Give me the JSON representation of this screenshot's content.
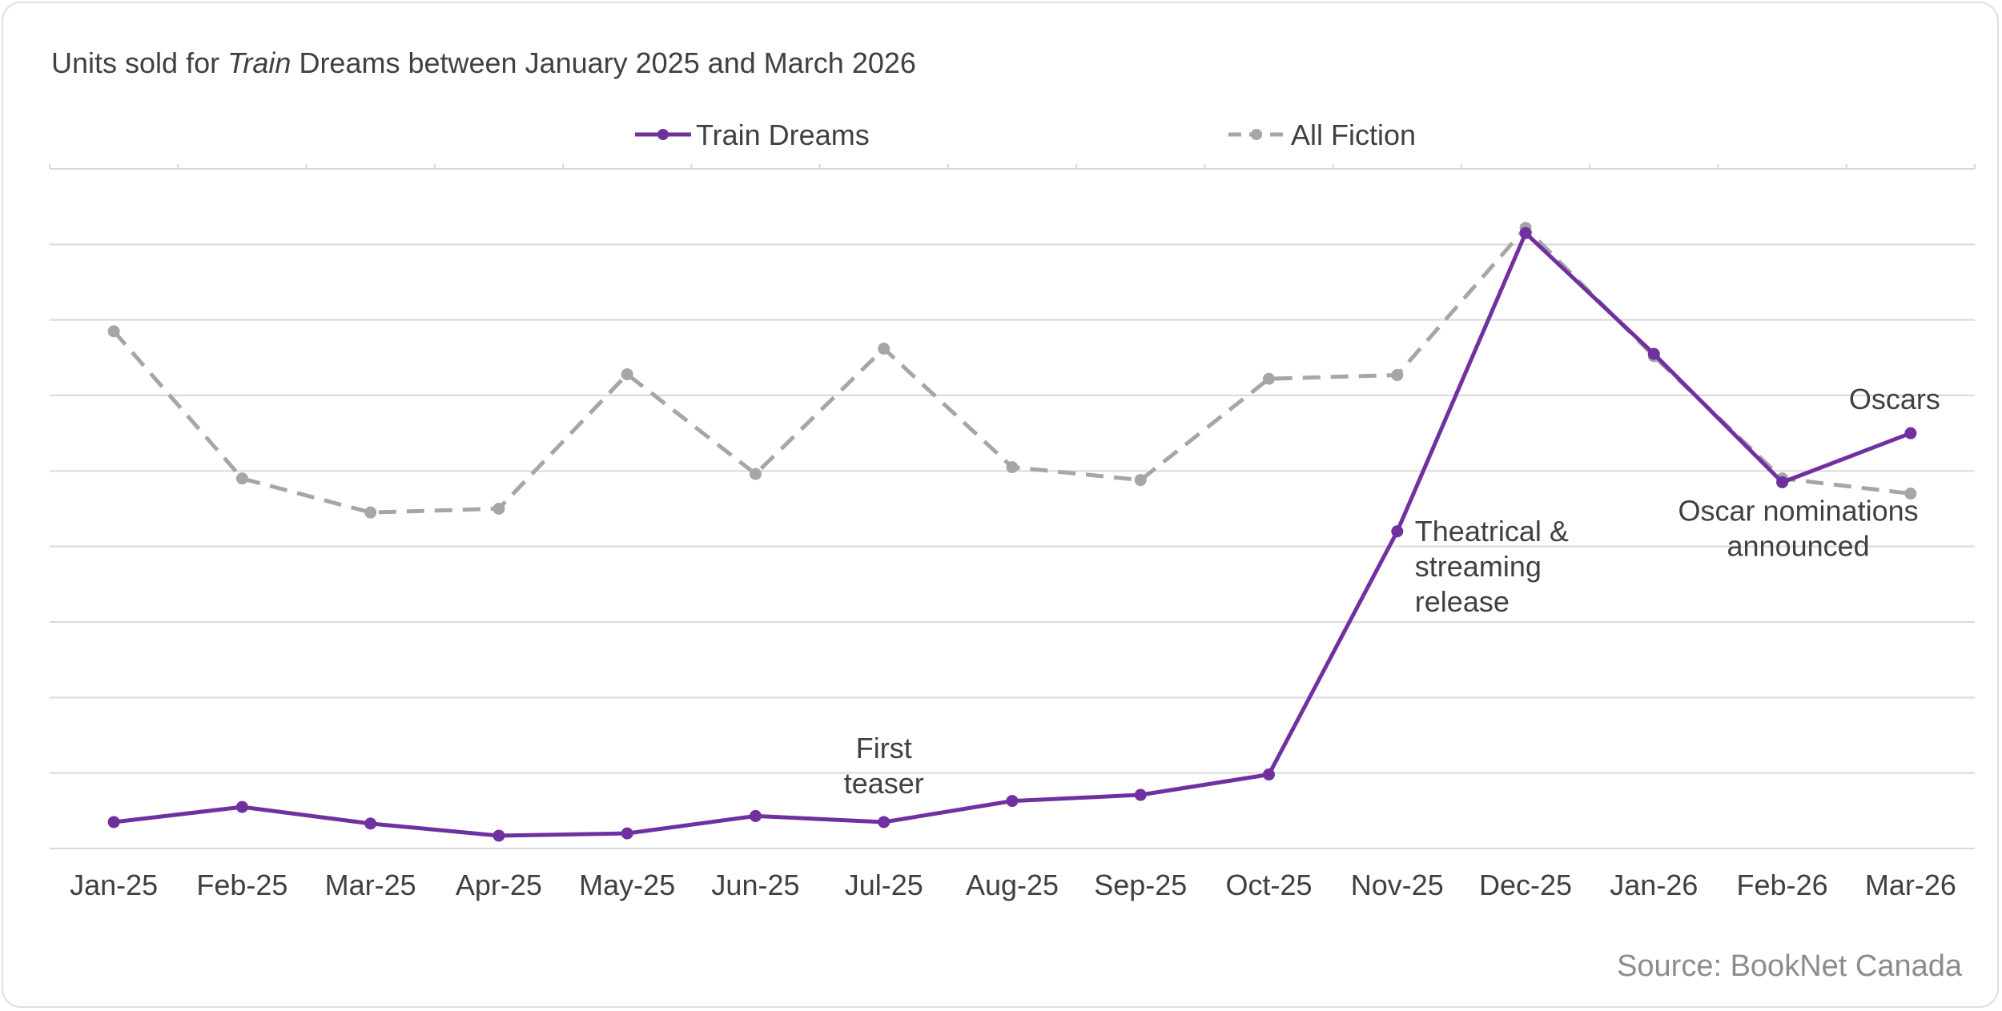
{
  "title": {
    "prefix": "Units sold for ",
    "italic": "Train",
    "suffix": " Dreams between January 2025 and March 2026"
  },
  "source": "Source: BookNet Canada",
  "colors": {
    "train_dreams": "#7030a0",
    "all_fiction": "#a6a6a6",
    "grid": "#d9d9d9",
    "text": "#404040"
  },
  "chart_data": {
    "type": "line",
    "title": "Units sold for Train Dreams between January 2025 and March 2026",
    "xlabel": "",
    "ylabel": "",
    "categories": [
      "Jan-25",
      "Feb-25",
      "Mar-25",
      "Apr-25",
      "May-25",
      "Jun-25",
      "Jul-25",
      "Aug-25",
      "Sep-25",
      "Oct-25",
      "Nov-25",
      "Dec-25",
      "Jan-26",
      "Feb-26",
      "Mar-26"
    ],
    "ylim": [
      0,
      9
    ],
    "y_axis_labels_shown": false,
    "grid": true,
    "legend_position": "top",
    "series": [
      {
        "name": "Train Dreams",
        "style": "solid",
        "values": [
          0.35,
          0.55,
          0.33,
          0.17,
          0.2,
          0.43,
          0.35,
          0.63,
          0.71,
          0.98,
          4.2,
          8.15,
          6.55,
          4.85,
          5.5
        ]
      },
      {
        "name": "All Fiction",
        "style": "dashed",
        "values": [
          6.85,
          4.9,
          4.45,
          4.5,
          6.28,
          4.96,
          6.62,
          5.05,
          4.88,
          6.22,
          6.27,
          8.22,
          6.52,
          4.9,
          4.7
        ]
      }
    ],
    "annotations": [
      {
        "series": 0,
        "index": 6,
        "lines": [
          "First",
          "teaser"
        ]
      },
      {
        "series": 0,
        "index": 10,
        "lines": [
          "Theatrical &",
          "streaming",
          "release"
        ]
      },
      {
        "series": 0,
        "index": 13,
        "lines": [
          "Oscar nominations",
          "announced"
        ]
      },
      {
        "series": 0,
        "index": 14,
        "lines": [
          "Oscars"
        ]
      }
    ]
  }
}
